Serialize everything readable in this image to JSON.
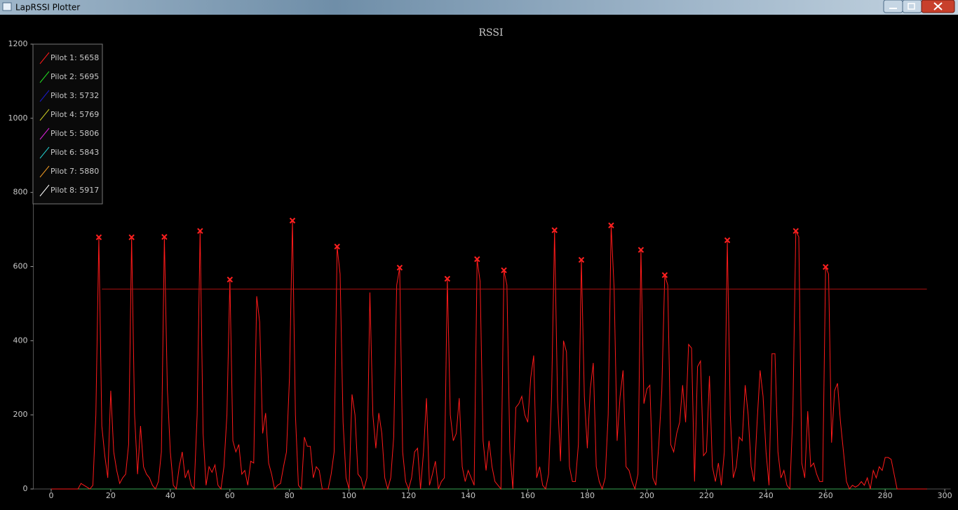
{
  "window": {
    "title": "LapRSSI Plotter"
  },
  "chart_data": {
    "type": "line",
    "title": "RSSI",
    "xlim": [
      -6,
      302
    ],
    "ylim": [
      0,
      1200
    ],
    "xticks": [
      0,
      20,
      40,
      60,
      80,
      100,
      120,
      140,
      160,
      180,
      200,
      220,
      240,
      260,
      280,
      300
    ],
    "yticks": [
      0,
      200,
      400,
      600,
      800,
      1000,
      1200
    ],
    "series": [
      {
        "name": "Pilot 1: 5658",
        "color": "#ff1a1a",
        "x": [
          0,
          1,
          2,
          3,
          4,
          5,
          6,
          7,
          8,
          9,
          10,
          11,
          12,
          13,
          14,
          15,
          16,
          17,
          18,
          19,
          20,
          21,
          22,
          23,
          24,
          25,
          26,
          27,
          28,
          29,
          30,
          31,
          32,
          33,
          34,
          35,
          36,
          37,
          38,
          39,
          40,
          41,
          42,
          43,
          44,
          45,
          46,
          47,
          48,
          49,
          50,
          51,
          52,
          53,
          54,
          55,
          56,
          57,
          58,
          59,
          60,
          61,
          62,
          63,
          64,
          65,
          66,
          67,
          68,
          69,
          70,
          71,
          72,
          73,
          74,
          75,
          76,
          77,
          78,
          79,
          80,
          81,
          82,
          83,
          84,
          85,
          86,
          87,
          88,
          89,
          90,
          91,
          92,
          93,
          94,
          95,
          96,
          97,
          98,
          99,
          100,
          101,
          102,
          103,
          104,
          105,
          106,
          107,
          108,
          109,
          110,
          111,
          112,
          113,
          114,
          115,
          116,
          117,
          118,
          119,
          120,
          121,
          122,
          123,
          124,
          125,
          126,
          127,
          128,
          129,
          130,
          131,
          132,
          133,
          134,
          135,
          136,
          137,
          138,
          139,
          140,
          141,
          142,
          143,
          144,
          145,
          146,
          147,
          148,
          149,
          150,
          151,
          152,
          153,
          154,
          155,
          156,
          157,
          158,
          159,
          160,
          161,
          162,
          163,
          164,
          165,
          166,
          167,
          168,
          169,
          170,
          171,
          172,
          173,
          174,
          175,
          176,
          177,
          178,
          179,
          180,
          181,
          182,
          183,
          184,
          185,
          186,
          187,
          188,
          189,
          190,
          191,
          192,
          193,
          194,
          195,
          196,
          197,
          198,
          199,
          200,
          201,
          202,
          203,
          204,
          205,
          206,
          207,
          208,
          209,
          210,
          211,
          212,
          213,
          214,
          215,
          216,
          217,
          218,
          219,
          220,
          221,
          222,
          223,
          224,
          225,
          226,
          227,
          228,
          229,
          230,
          231,
          232,
          233,
          234,
          235,
          236,
          237,
          238,
          239,
          240,
          241,
          242,
          243,
          244,
          245,
          246,
          247,
          248,
          249,
          250,
          251,
          252,
          253,
          254,
          255,
          256,
          257,
          258,
          259,
          260,
          261,
          262,
          263,
          264,
          265,
          266,
          267,
          268,
          269,
          270,
          271,
          272,
          273,
          274,
          275,
          276,
          277,
          278,
          279,
          280,
          281,
          282,
          283,
          284,
          285,
          286,
          287,
          288,
          289,
          290,
          291,
          292,
          293,
          294
        ],
        "values": [
          0,
          0,
          0,
          0,
          0,
          0,
          0,
          0,
          0,
          0,
          15,
          10,
          5,
          0,
          10,
          200,
          679,
          170,
          90,
          30,
          265,
          100,
          50,
          15,
          30,
          40,
          120,
          679,
          200,
          40,
          170,
          60,
          40,
          30,
          10,
          0,
          20,
          100,
          680,
          270,
          100,
          10,
          0,
          60,
          100,
          30,
          50,
          10,
          0,
          200,
          696,
          150,
          10,
          60,
          45,
          65,
          10,
          0,
          60,
          200,
          565,
          130,
          100,
          120,
          40,
          50,
          10,
          75,
          70,
          520,
          450,
          150,
          205,
          70,
          40,
          0,
          10,
          15,
          60,
          100,
          300,
          724,
          200,
          10,
          0,
          140,
          115,
          115,
          30,
          60,
          50,
          0,
          0,
          0,
          40,
          100,
          654,
          580,
          180,
          30,
          0,
          255,
          200,
          40,
          30,
          0,
          30,
          530,
          200,
          110,
          205,
          150,
          30,
          0,
          30,
          140,
          550,
          597,
          100,
          20,
          0,
          30,
          100,
          110,
          0,
          100,
          245,
          10,
          40,
          75,
          0,
          20,
          30,
          567,
          200,
          130,
          150,
          245,
          60,
          20,
          50,
          30,
          10,
          620,
          560,
          130,
          50,
          130,
          60,
          20,
          10,
          0,
          590,
          550,
          100,
          0,
          220,
          230,
          250,
          200,
          180,
          300,
          360,
          30,
          60,
          10,
          0,
          40,
          250,
          698,
          240,
          75,
          400,
          370,
          60,
          20,
          20,
          120,
          618,
          250,
          110,
          270,
          340,
          60,
          20,
          0,
          30,
          200,
          711,
          540,
          130,
          250,
          320,
          60,
          50,
          20,
          0,
          40,
          645,
          230,
          270,
          280,
          30,
          10,
          120,
          265,
          577,
          550,
          120,
          100,
          150,
          180,
          280,
          180,
          390,
          380,
          20,
          330,
          345,
          90,
          100,
          305,
          60,
          20,
          70,
          10,
          100,
          671,
          200,
          30,
          60,
          140,
          130,
          280,
          200,
          60,
          20,
          180,
          320,
          250,
          100,
          10,
          365,
          365,
          100,
          30,
          50,
          10,
          0,
          200,
          696,
          680,
          70,
          30,
          210,
          60,
          70,
          40,
          20,
          20,
          599,
          580,
          125,
          265,
          285,
          180,
          100,
          20,
          0,
          10,
          5,
          10,
          20,
          10,
          30,
          0,
          50,
          30,
          60,
          50,
          85,
          85,
          80,
          40,
          0,
          0,
          0,
          0,
          0,
          0,
          0,
          0,
          0,
          0,
          0
        ]
      },
      {
        "name": "Pilot 2: 5695",
        "color": "#22dd22",
        "x": [
          0,
          294
        ],
        "values": [
          0,
          0
        ]
      },
      {
        "name": "Pilot 3: 5732",
        "color": "#1a1acc",
        "x": [
          0,
          294
        ],
        "values": [
          0,
          0
        ]
      },
      {
        "name": "Pilot 4: 5769",
        "color": "#cccc22",
        "x": [
          0,
          294
        ],
        "values": [
          0,
          0
        ]
      },
      {
        "name": "Pilot 5: 5806",
        "color": "#dd22dd",
        "x": [
          0,
          294
        ],
        "values": [
          0,
          0
        ]
      },
      {
        "name": "Pilot 6: 5843",
        "color": "#22cccc",
        "x": [
          0,
          294
        ],
        "values": [
          0,
          0
        ]
      },
      {
        "name": "Pilot 7: 5880",
        "color": "#ee9922",
        "x": [
          0,
          294
        ],
        "values": [
          0,
          0
        ]
      },
      {
        "name": "Pilot 8: 5917",
        "color": "#ffffff",
        "x": [
          0,
          294
        ],
        "values": [
          0,
          0
        ]
      }
    ],
    "peaks": {
      "color": "#ff2020",
      "x": [
        16,
        27,
        38,
        50,
        60,
        81,
        96,
        117,
        133,
        143,
        152,
        169,
        178,
        188,
        198,
        206,
        227,
        250,
        260
      ],
      "values": [
        679,
        679,
        680,
        696,
        565,
        724,
        654,
        597,
        567,
        620,
        590,
        698,
        618,
        711,
        645,
        577,
        671,
        696,
        599
      ]
    },
    "threshold": {
      "color": "#b01010",
      "value": 539,
      "x": [
        17,
        294
      ]
    }
  }
}
